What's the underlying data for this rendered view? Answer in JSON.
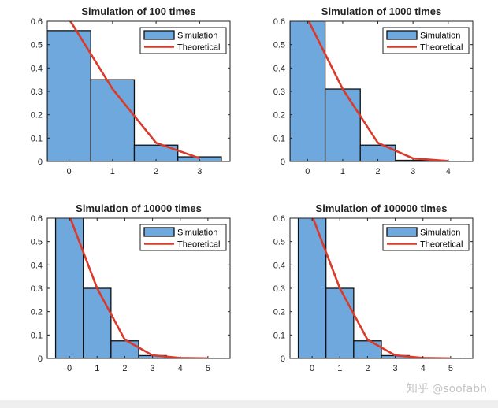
{
  "colors": {
    "bar_fill": "#6fa8dc",
    "bar_edge": "#111111",
    "line": "#d93a2b",
    "axis": "#222222",
    "background": "#ffffff"
  },
  "watermark": "知乎 @soofabh",
  "chart_data": [
    {
      "type": "bar",
      "title": "Simulation of 100 times",
      "x": [
        0,
        1,
        2,
        3
      ],
      "xticks": [
        0,
        1,
        2,
        3
      ],
      "xlim": [
        -0.5,
        3.7
      ],
      "ylim": [
        0,
        0.6
      ],
      "yticks": [
        0,
        0.1,
        0.2,
        0.3,
        0.4,
        0.5,
        0.6
      ],
      "series": [
        {
          "name": "Simulation",
          "type": "bar",
          "values": [
            0.56,
            0.35,
            0.07,
            0.02
          ]
        },
        {
          "name": "Theoretical",
          "type": "line",
          "values": [
            0.61,
            0.31,
            0.08,
            0.014
          ]
        }
      ],
      "legend": [
        "Simulation",
        "Theoretical"
      ],
      "legend_position": "top-right",
      "xlabel": "",
      "ylabel": "",
      "grid": false
    },
    {
      "type": "bar",
      "title": "Simulation of 1000 times",
      "x": [
        0,
        1,
        2,
        3,
        4
      ],
      "xticks": [
        0,
        1,
        2,
        3,
        4
      ],
      "xlim": [
        -0.5,
        4.7
      ],
      "ylim": [
        0,
        0.6
      ],
      "yticks": [
        0,
        0.1,
        0.2,
        0.3,
        0.4,
        0.5,
        0.6
      ],
      "series": [
        {
          "name": "Simulation",
          "type": "bar",
          "values": [
            0.61,
            0.31,
            0.07,
            0.005,
            0.001
          ]
        },
        {
          "name": "Theoretical",
          "type": "line",
          "values": [
            0.61,
            0.31,
            0.08,
            0.013,
            0.002
          ]
        }
      ],
      "legend": [
        "Simulation",
        "Theoretical"
      ],
      "legend_position": "top-right",
      "xlabel": "",
      "ylabel": "",
      "grid": false
    },
    {
      "type": "bar",
      "title": "Simulation of 10000 times",
      "x": [
        0,
        1,
        2,
        3,
        4,
        5
      ],
      "xticks": [
        0,
        1,
        2,
        3,
        4,
        5
      ],
      "xlim": [
        -0.8,
        5.8
      ],
      "ylim": [
        0,
        0.6
      ],
      "yticks": [
        0,
        0.1,
        0.2,
        0.3,
        0.4,
        0.5,
        0.6
      ],
      "series": [
        {
          "name": "Simulation",
          "type": "bar",
          "values": [
            0.61,
            0.3,
            0.075,
            0.012,
            0.002,
            0.0003
          ]
        },
        {
          "name": "Theoretical",
          "type": "line",
          "values": [
            0.61,
            0.3,
            0.08,
            0.013,
            0.002,
            0.0003
          ]
        }
      ],
      "legend": [
        "Simulation",
        "Theoretical"
      ],
      "legend_position": "top-right",
      "xlabel": "",
      "ylabel": "",
      "grid": false
    },
    {
      "type": "bar",
      "title": "Simulation of 100000 times",
      "x": [
        0,
        1,
        2,
        3,
        4,
        5
      ],
      "xticks": [
        0,
        1,
        2,
        3,
        4,
        5
      ],
      "xlim": [
        -0.8,
        5.8
      ],
      "ylim": [
        0,
        0.6
      ],
      "yticks": [
        0,
        0.1,
        0.2,
        0.3,
        0.4,
        0.5,
        0.6
      ],
      "series": [
        {
          "name": "Simulation",
          "type": "bar",
          "values": [
            0.61,
            0.3,
            0.075,
            0.012,
            0.002,
            0.0003
          ]
        },
        {
          "name": "Theoretical",
          "type": "line",
          "values": [
            0.61,
            0.3,
            0.08,
            0.013,
            0.002,
            0.0003
          ]
        }
      ],
      "legend": [
        "Simulation",
        "Theoretical"
      ],
      "legend_position": "top-right",
      "xlabel": "",
      "ylabel": "",
      "grid": false
    }
  ]
}
